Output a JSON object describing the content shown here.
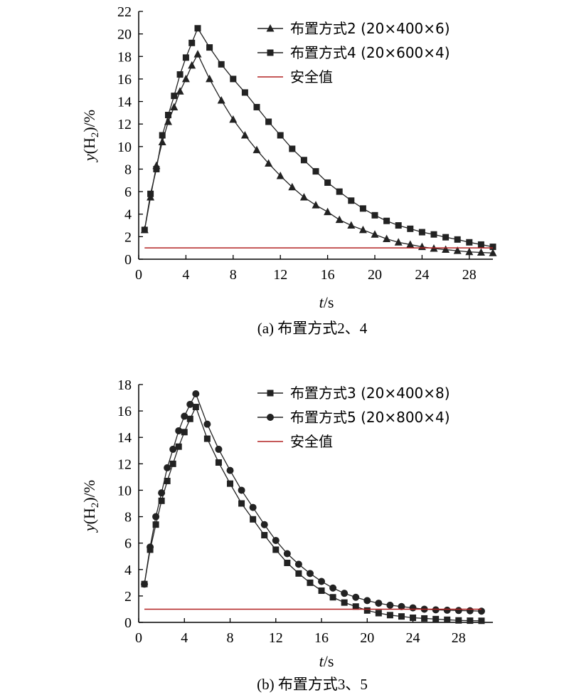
{
  "chart_data": [
    {
      "type": "line",
      "panel": "a",
      "caption": "(a) 布置方式2、4",
      "xlabel_var": "t",
      "xlabel_unit": "/s",
      "ylabel_var": "y",
      "ylabel_paren_open": "(H",
      "ylabel_sub": "2",
      "ylabel_rest": ")/%",
      "xlim": [
        0,
        30
      ],
      "ylim": [
        0,
        22
      ],
      "xticks": [
        0,
        4,
        8,
        12,
        16,
        20,
        24,
        28
      ],
      "yticks": [
        0,
        2,
        4,
        6,
        8,
        10,
        12,
        14,
        16,
        18,
        20,
        22
      ],
      "legend_position": "top-right",
      "grid": false,
      "series": [
        {
          "name": "布置方式2 (20×400×6)",
          "marker": "triangle",
          "color": "#222222",
          "x": [
            0.5,
            1,
            1.5,
            2,
            2.5,
            3,
            3.5,
            4,
            4.5,
            5,
            6,
            7,
            8,
            9,
            10,
            11,
            12,
            13,
            14,
            15,
            16,
            17,
            18,
            19,
            20,
            21,
            22,
            23,
            24,
            25,
            26,
            27,
            28,
            29,
            30
          ],
          "y": [
            2.6,
            5.5,
            8.3,
            10.4,
            12.2,
            13.5,
            14.9,
            16.0,
            17.2,
            18.2,
            16.0,
            14.1,
            12.4,
            11.0,
            9.7,
            8.5,
            7.4,
            6.4,
            5.5,
            4.8,
            4.2,
            3.5,
            3.0,
            2.6,
            2.2,
            1.8,
            1.5,
            1.3,
            1.1,
            0.95,
            0.85,
            0.75,
            0.65,
            0.6,
            0.55
          ]
        },
        {
          "name": "布置方式4 (20×600×4)",
          "marker": "square",
          "color": "#222222",
          "x": [
            0.5,
            1,
            1.5,
            2,
            2.5,
            3,
            3.5,
            4,
            4.5,
            5,
            6,
            7,
            8,
            9,
            10,
            11,
            12,
            13,
            14,
            15,
            16,
            17,
            18,
            19,
            20,
            21,
            22,
            23,
            24,
            25,
            26,
            27,
            28,
            29,
            30
          ],
          "y": [
            2.6,
            5.8,
            8.0,
            11.0,
            12.8,
            14.5,
            16.4,
            17.9,
            19.2,
            20.5,
            18.8,
            17.3,
            16.0,
            14.8,
            13.5,
            12.2,
            11.0,
            9.8,
            8.8,
            7.8,
            6.8,
            6.0,
            5.2,
            4.5,
            3.9,
            3.4,
            3.0,
            2.7,
            2.4,
            2.2,
            1.95,
            1.75,
            1.5,
            1.3,
            1.1
          ]
        },
        {
          "name": "安全值",
          "marker": "none",
          "color": "#b22222",
          "x": [
            0.5,
            30
          ],
          "y": [
            1.0,
            1.0
          ]
        }
      ]
    },
    {
      "type": "line",
      "panel": "b",
      "caption": "(b) 布置方式3、5",
      "xlabel_var": "t",
      "xlabel_unit": "/s",
      "ylabel_var": "y",
      "ylabel_paren_open": "(H",
      "ylabel_sub": "2",
      "ylabel_rest": ")/%",
      "xlim": [
        0,
        31
      ],
      "ylim": [
        0,
        18
      ],
      "xticks": [
        0,
        4,
        8,
        12,
        16,
        20,
        24,
        28
      ],
      "yticks": [
        0,
        2,
        4,
        6,
        8,
        10,
        12,
        14,
        16,
        18
      ],
      "legend_position": "top-right",
      "grid": false,
      "series": [
        {
          "name": "布置方式3 (20×400×8)",
          "marker": "square",
          "color": "#222222",
          "x": [
            0.5,
            1,
            1.5,
            2,
            2.5,
            3,
            3.5,
            4,
            4.5,
            5,
            6,
            7,
            8,
            9,
            10,
            11,
            12,
            13,
            14,
            15,
            16,
            17,
            18,
            19,
            20,
            21,
            22,
            23,
            24,
            25,
            26,
            27,
            28,
            29,
            30
          ],
          "y": [
            2.9,
            5.5,
            7.4,
            9.2,
            10.7,
            12.0,
            13.3,
            14.4,
            15.4,
            16.3,
            13.9,
            12.1,
            10.5,
            9.0,
            7.8,
            6.6,
            5.5,
            4.5,
            3.7,
            3.0,
            2.4,
            1.9,
            1.5,
            1.2,
            0.9,
            0.7,
            0.55,
            0.45,
            0.35,
            0.3,
            0.25,
            0.2,
            0.15,
            0.13,
            0.12
          ]
        },
        {
          "name": "布置方式5 (20×800×4)",
          "marker": "circle",
          "color": "#222222",
          "x": [
            0.5,
            1,
            1.5,
            2,
            2.5,
            3,
            3.5,
            4,
            4.5,
            5,
            6,
            7,
            8,
            9,
            10,
            11,
            12,
            13,
            14,
            15,
            16,
            17,
            18,
            19,
            20,
            21,
            22,
            23,
            24,
            25,
            26,
            27,
            28,
            29,
            30
          ],
          "y": [
            2.9,
            5.7,
            8.0,
            9.8,
            11.7,
            13.1,
            14.5,
            15.6,
            16.5,
            17.3,
            15.0,
            13.1,
            11.5,
            10.0,
            8.7,
            7.4,
            6.2,
            5.2,
            4.4,
            3.7,
            3.1,
            2.6,
            2.2,
            1.9,
            1.65,
            1.45,
            1.3,
            1.2,
            1.1,
            1.0,
            0.95,
            0.92,
            0.9,
            0.88,
            0.85
          ]
        },
        {
          "name": "安全值",
          "marker": "none",
          "color": "#b22222",
          "x": [
            0.5,
            30
          ],
          "y": [
            1.0,
            1.0
          ]
        }
      ]
    }
  ]
}
